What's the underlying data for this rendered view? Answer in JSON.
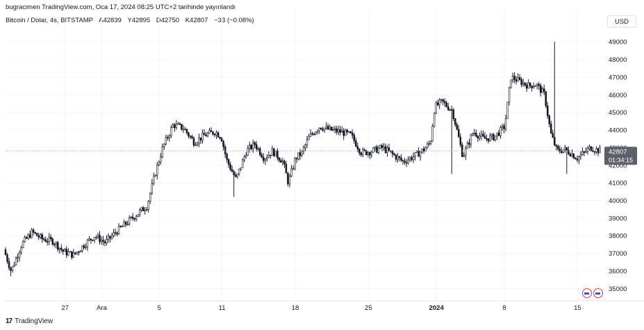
{
  "header": {
    "published": "bugracimen TradingView.com, Oca 17, 2024 08:25 UTC+2 tarihinde yayınlandı",
    "symbol": "Bitcoin / Dolar, 4s, BITSTAMP",
    "ohlc": {
      "open": "A42839",
      "high": "Y42895",
      "low": "D42750",
      "close": "K42807"
    },
    "change": "−33 (−0.08%)",
    "currency": "USD"
  },
  "footer": {
    "brand": "TradingView",
    "logo_text": "17"
  },
  "price_label": {
    "value": "42807",
    "countdown": "01:34:15"
  },
  "chart_data": {
    "type": "candlestick",
    "symbol": "BTCUSD",
    "interval": "4h",
    "ylim": [
      34500,
      49600
    ],
    "y_ticks": [
      35000,
      36000,
      37000,
      38000,
      39000,
      40000,
      41000,
      42000,
      43000,
      44000,
      45000,
      46000,
      47000,
      48000,
      49000
    ],
    "x_labels": [
      {
        "label": "27",
        "day": 27,
        "bold": false
      },
      {
        "label": "Ara",
        "day": 30.5,
        "bold": false
      },
      {
        "label": "5",
        "day": 36,
        "bold": false
      },
      {
        "label": "11",
        "day": 42,
        "bold": false
      },
      {
        "label": "18",
        "day": 49,
        "bold": false
      },
      {
        "label": "25",
        "day": 56,
        "bold": false
      },
      {
        "label": "2024",
        "day": 62.5,
        "bold": true
      },
      {
        "label": "8",
        "day": 69,
        "bold": false
      },
      {
        "label": "15",
        "day": 76,
        "bold": false
      }
    ],
    "x_range_days": [
      21.3,
      78.3
    ],
    "last_price": 42807,
    "path_days": [
      21.3,
      22,
      23,
      24,
      25,
      26,
      27,
      28,
      29,
      30,
      31,
      32,
      33,
      34,
      35,
      35.8,
      36.5,
      37.5,
      38.5,
      39.5,
      40.5,
      41.5,
      42.1,
      42.6,
      43.5,
      44.5,
      45.3,
      46.2,
      47,
      48,
      48.5,
      49.2,
      49.8,
      50.5,
      51.5,
      52.5,
      53.5,
      54.5,
      55.5,
      56.5,
      57.5,
      58.5,
      59.5,
      60.5,
      61.5,
      62.1,
      62.5,
      63.2,
      64.2,
      65.2,
      66.2,
      67.2,
      68.2,
      69.2,
      69.8,
      70.5,
      71.5,
      72.2,
      73,
      73.6,
      74.2,
      74.9,
      75.5,
      76.1,
      76.8,
      77.4,
      78.3
    ],
    "path_close": [
      37200,
      36000,
      37500,
      38200,
      37800,
      37700,
      37100,
      36900,
      37500,
      38000,
      37600,
      38200,
      38700,
      39200,
      39700,
      41600,
      43000,
      44300,
      44100,
      43300,
      43700,
      43900,
      43600,
      42300,
      41200,
      42800,
      43200,
      42400,
      42800,
      42200,
      41000,
      42400,
      42700,
      43600,
      44200,
      44000,
      43900,
      43700,
      42700,
      42800,
      43000,
      42600,
      42200,
      42500,
      42900,
      43300,
      45300,
      45600,
      45100,
      42500,
      43900,
      43500,
      43600,
      44200,
      47000,
      46800,
      46500,
      46600,
      46000,
      43800,
      42800,
      42900,
      42700,
      42400,
      42700,
      43000,
      42807
    ],
    "volatility": 250,
    "spikes": [
      {
        "day": 73.8,
        "high": 49000,
        "low": 45800
      },
      {
        "day": 74.9,
        "low": 41500
      },
      {
        "day": 63.9,
        "low": 41500
      },
      {
        "day": 43.2,
        "low": 40200
      },
      {
        "day": 21.8,
        "low": 35700
      }
    ],
    "colors": {
      "candle": "#131722",
      "grid": "#f0f3fa",
      "axis_text": "#131722",
      "price_line": "#9598a1",
      "price_label_bg": "#5d606b"
    }
  }
}
